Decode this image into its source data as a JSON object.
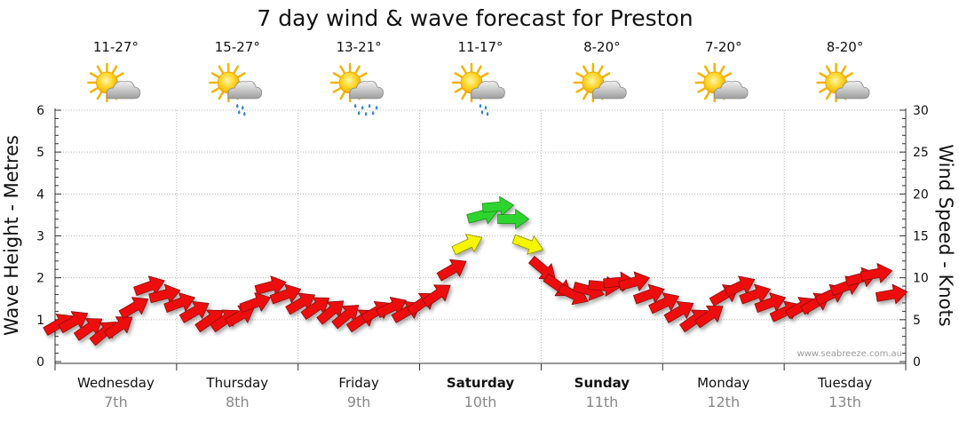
{
  "chart_data": {
    "type": "line",
    "title": "7 day wind & wave forecast for Preston",
    "ylabel": "Wave Height - Metres",
    "y2label": "Wind Speed - Knots",
    "ylim": [
      0,
      6
    ],
    "y2lim": [
      0,
      30
    ],
    "yticks": [
      "0",
      "1",
      "2",
      "3",
      "4",
      "5",
      "6"
    ],
    "y2ticks": [
      "0",
      "5",
      "10",
      "15",
      "20",
      "25",
      "30"
    ],
    "grid": true,
    "watermark": "www.seabreeze.com.au",
    "days": [
      {
        "name": "Wednesday",
        "date": "7th",
        "bold": false,
        "temp": "11-27°",
        "weather": "partly-cloudy"
      },
      {
        "name": "Thursday",
        "date": "8th",
        "bold": false,
        "temp": "15-27°",
        "weather": "showers"
      },
      {
        "name": "Friday",
        "date": "9th",
        "bold": false,
        "temp": "13-21°",
        "weather": "rain"
      },
      {
        "name": "Saturday",
        "date": "10th",
        "bold": true,
        "temp": "11-17°",
        "weather": "showers"
      },
      {
        "name": "Sunday",
        "date": "11th",
        "bold": true,
        "temp": "8-20°",
        "weather": "partly-cloudy"
      },
      {
        "name": "Monday",
        "date": "12th",
        "bold": false,
        "temp": "7-20°",
        "weather": "partly-cloudy"
      },
      {
        "name": "Tuesday",
        "date": "13th",
        "bold": false,
        "temp": "8-20°",
        "weather": "partly-cloudy"
      }
    ],
    "wind_series": {
      "name": "",
      "unit": "knots",
      "points_per_day": 8,
      "speed_knots": [
        4.5,
        4.8,
        4,
        3.5,
        4.2,
        6.5,
        9,
        8,
        7,
        6,
        5,
        5,
        5.5,
        7,
        9,
        8,
        7,
        6.5,
        6,
        5.5,
        5,
        6,
        6.5,
        6,
        7,
        8,
        11,
        14,
        17.5,
        18.5,
        17,
        14,
        11,
        9,
        8,
        8.5,
        9,
        9.5,
        9.5,
        8,
        7,
        6,
        5,
        5.5,
        8,
        9,
        8,
        7,
        6,
        6.5,
        7,
        8,
        9,
        10,
        10.5,
        8
      ],
      "direction_deg": [
        60,
        60,
        55,
        50,
        55,
        60,
        70,
        75,
        70,
        60,
        55,
        55,
        60,
        70,
        75,
        70,
        60,
        55,
        50,
        50,
        55,
        60,
        65,
        60,
        55,
        55,
        60,
        65,
        75,
        85,
        90,
        110,
        130,
        125,
        115,
        105,
        95,
        85,
        75,
        70,
        65,
        60,
        55,
        55,
        60,
        65,
        70,
        70,
        65,
        60,
        60,
        65,
        70,
        75,
        80,
        80
      ]
    }
  }
}
